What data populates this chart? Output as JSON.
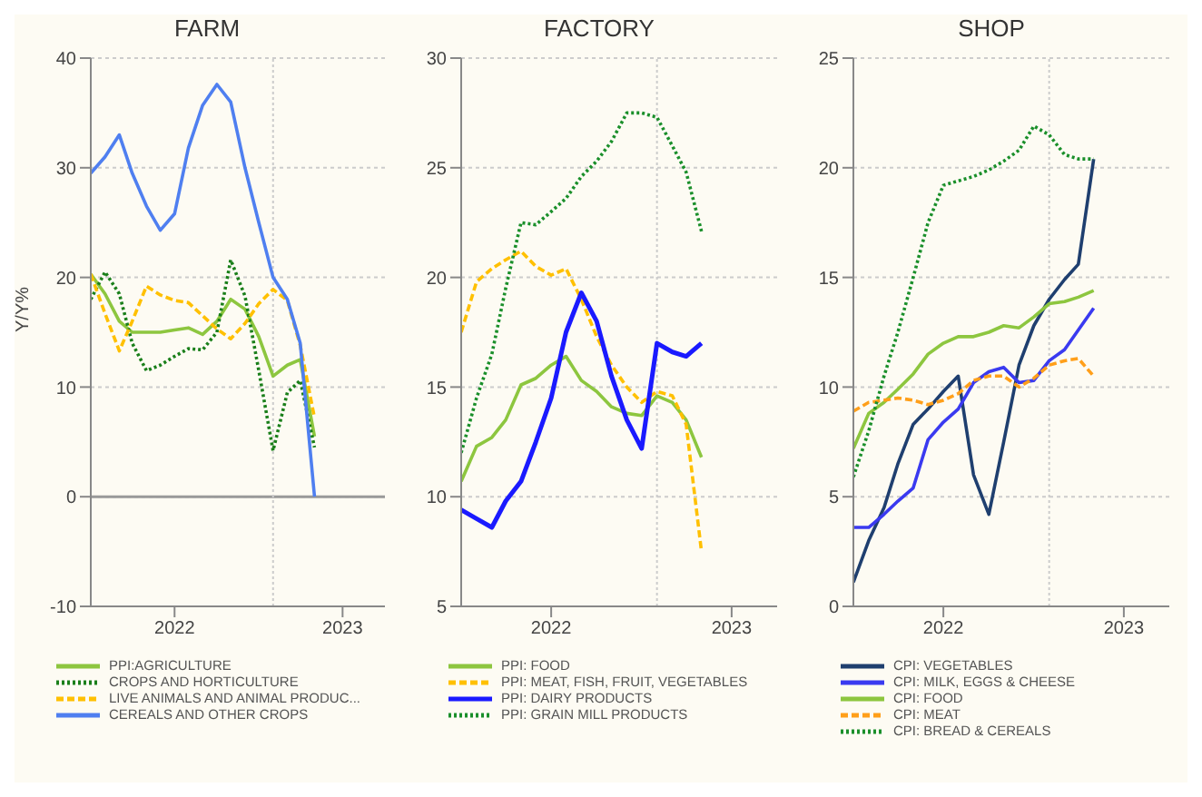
{
  "chart_data": [
    {
      "type": "line",
      "title": "FARM",
      "ylabel": "Y/Y%",
      "x": [
        "2021-12",
        "2022-01",
        "2022-02",
        "2022-03",
        "2022-04",
        "2022-05",
        "2022-06",
        "2022-07",
        "2022-08",
        "2022-09",
        "2022-10",
        "2022-11",
        "2022-12",
        "2023-01",
        "2023-02",
        "2023-03",
        "2023-04"
      ],
      "xlim": [
        "2021-12",
        "2023-09"
      ],
      "xticks": [
        {
          "value": "2022-06",
          "label": "2022"
        },
        {
          "value": "2023-06",
          "label": "2023"
        }
      ],
      "ylim": [
        -10,
        40
      ],
      "yticks": [
        -10,
        0,
        10,
        20,
        30,
        40
      ],
      "grid": "y",
      "legend": "bottom",
      "marker": "none",
      "ref_lines": [
        {
          "axis": "y",
          "value": 0,
          "color": "#999999",
          "line_style": "solid"
        },
        {
          "axis": "x",
          "value": "2023-01",
          "color": "#cccccc",
          "line_style": "dotted"
        }
      ],
      "series": [
        {
          "name": "PPI:AGRICULTURE",
          "color": "#8dc63f",
          "line_style": "solid",
          "values": [
            20.3,
            18.5,
            16,
            15,
            15,
            15,
            15.2,
            15.4,
            14.8,
            16,
            18,
            17.1,
            14.6,
            11,
            12,
            12.5,
            5.5
          ]
        },
        {
          "name": "CROPS AND HORTICULTURE",
          "color": "#1a7f1a",
          "line_style": "dotted",
          "values": [
            18,
            20.5,
            18.5,
            14,
            11.5,
            12,
            12.8,
            13.5,
            13.4,
            15,
            21.6,
            18.3,
            11.5,
            4.2,
            9.5,
            10.6,
            4.5
          ]
        },
        {
          "name": "LIVE ANIMALS AND ANIMAL PRODUC...",
          "color": "#ffc000",
          "line_style": "dashed",
          "values": [
            20.3,
            16.7,
            13.3,
            16,
            19.2,
            18.4,
            17.9,
            17.7,
            16.5,
            15.3,
            14.4,
            15.8,
            17.6,
            18.9,
            17.9,
            13.8,
            7.2
          ]
        },
        {
          "name": "CEREALS AND OTHER CROPS",
          "color": "#4f7ff0",
          "line_style": "solid",
          "values": [
            29.5,
            31,
            33,
            29.5,
            26.5,
            24.3,
            25.8,
            31.8,
            35.7,
            37.6,
            36,
            30,
            25,
            20,
            18,
            14,
            0
          ]
        }
      ]
    },
    {
      "type": "line",
      "title": "FACTORY",
      "x": [
        "2021-12",
        "2022-01",
        "2022-02",
        "2022-03",
        "2022-04",
        "2022-05",
        "2022-06",
        "2022-07",
        "2022-08",
        "2022-09",
        "2022-10",
        "2022-11",
        "2022-12",
        "2023-01",
        "2023-02",
        "2023-03",
        "2023-04"
      ],
      "xlim": [
        "2021-12",
        "2023-09"
      ],
      "xticks": [
        {
          "value": "2022-06",
          "label": "2022"
        },
        {
          "value": "2023-06",
          "label": "2023"
        }
      ],
      "ylim": [
        5,
        30
      ],
      "yticks": [
        5,
        10,
        15,
        20,
        25,
        30
      ],
      "grid": "y",
      "legend": "bottom",
      "marker": "none",
      "ref_lines": [
        {
          "axis": "x",
          "value": "2023-01",
          "color": "#cccccc",
          "line_style": "dotted"
        }
      ],
      "series": [
        {
          "name": "PPI: FOOD",
          "color": "#8dc63f",
          "line_style": "solid",
          "values": [
            10.7,
            12.3,
            12.7,
            13.5,
            15.1,
            15.4,
            16,
            16.4,
            15.3,
            14.8,
            14.1,
            13.8,
            13.7,
            14.6,
            14.3,
            13.5,
            11.8
          ]
        },
        {
          "name": "PPI: MEAT, FISH, FRUIT, VEGETABLES",
          "color": "#ffc000",
          "line_style": "dashed",
          "values": [
            17.5,
            19.8,
            20.4,
            20.8,
            21.2,
            20.5,
            20.1,
            20.4,
            19,
            17.3,
            16,
            15,
            14.3,
            14.8,
            14.6,
            13.3,
            7.5
          ]
        },
        {
          "name": "PPI: DAIRY PRODUCTS",
          "color": "#1a1aff",
          "line_style": "solid",
          "values": [
            9.4,
            9,
            8.6,
            9.8,
            10.7,
            12.5,
            14.5,
            17.5,
            19.3,
            18,
            15.5,
            13.5,
            12.2,
            17,
            16.6,
            16.4,
            17
          ]
        },
        {
          "name": "PPI: GRAIN MILL PRODUCTS",
          "color": "#1a8f2a",
          "line_style": "dotted",
          "values": [
            12,
            14.5,
            16.5,
            19.5,
            22.5,
            22.4,
            23,
            23.6,
            24.6,
            25.3,
            26.2,
            27.5,
            27.5,
            27.3,
            26,
            24.8,
            22.1
          ]
        }
      ]
    },
    {
      "type": "line",
      "title": "SHOP",
      "x": [
        "2021-12",
        "2022-01",
        "2022-02",
        "2022-03",
        "2022-04",
        "2022-05",
        "2022-06",
        "2022-07",
        "2022-08",
        "2022-09",
        "2022-10",
        "2022-11",
        "2022-12",
        "2023-01",
        "2023-02",
        "2023-03",
        "2023-04"
      ],
      "xlim": [
        "2021-12",
        "2023-09"
      ],
      "xticks": [
        {
          "value": "2022-06",
          "label": "2022"
        },
        {
          "value": "2023-06",
          "label": "2023"
        }
      ],
      "ylim": [
        0,
        25
      ],
      "yticks": [
        0,
        5,
        10,
        15,
        20,
        25
      ],
      "grid": "y",
      "legend": "bottom",
      "marker": "none",
      "ref_lines": [
        {
          "axis": "x",
          "value": "2023-01",
          "color": "#cccccc",
          "line_style": "dotted"
        }
      ],
      "series": [
        {
          "name": "CPI: VEGETABLES",
          "color": "#1f3f6f",
          "line_style": "solid",
          "values": [
            1.1,
            3,
            4.5,
            6.5,
            8.3,
            9,
            9.8,
            10.5,
            6,
            4.2,
            7.5,
            11,
            12.8,
            14,
            14.9,
            15.6,
            20.4
          ]
        },
        {
          "name": "CPI: MILK, EGGS & CHEESE",
          "color": "#3a3af0",
          "line_style": "solid",
          "values": [
            3.6,
            3.6,
            4.2,
            4.8,
            5.4,
            7.6,
            8.4,
            9,
            10.2,
            10.7,
            10.9,
            10.2,
            10.3,
            11.2,
            11.7,
            12.6,
            13.6
          ]
        },
        {
          "name": "CPI: FOOD",
          "color": "#8dc63f",
          "line_style": "solid",
          "values": [
            7.2,
            8.8,
            9.3,
            9.9,
            10.6,
            11.5,
            12,
            12.3,
            12.3,
            12.5,
            12.8,
            12.7,
            13.2,
            13.8,
            13.9,
            14.1,
            14.4
          ]
        },
        {
          "name": "CPI: MEAT",
          "color": "#ff9f1a",
          "line_style": "dashed",
          "values": [
            8.9,
            9.3,
            9.4,
            9.5,
            9.4,
            9.2,
            9.4,
            9.7,
            10.3,
            10.5,
            10.5,
            10,
            10.4,
            11,
            11.2,
            11.3,
            10.5
          ]
        },
        {
          "name": "CPI: BREAD & CEREALS",
          "color": "#1a8f2a",
          "line_style": "dotted",
          "values": [
            5.9,
            8,
            10.5,
            12.5,
            15,
            17.5,
            19.2,
            19.4,
            19.6,
            19.9,
            20.3,
            20.8,
            21.9,
            21.5,
            20.6,
            20.4,
            20.4
          ]
        }
      ]
    }
  ]
}
